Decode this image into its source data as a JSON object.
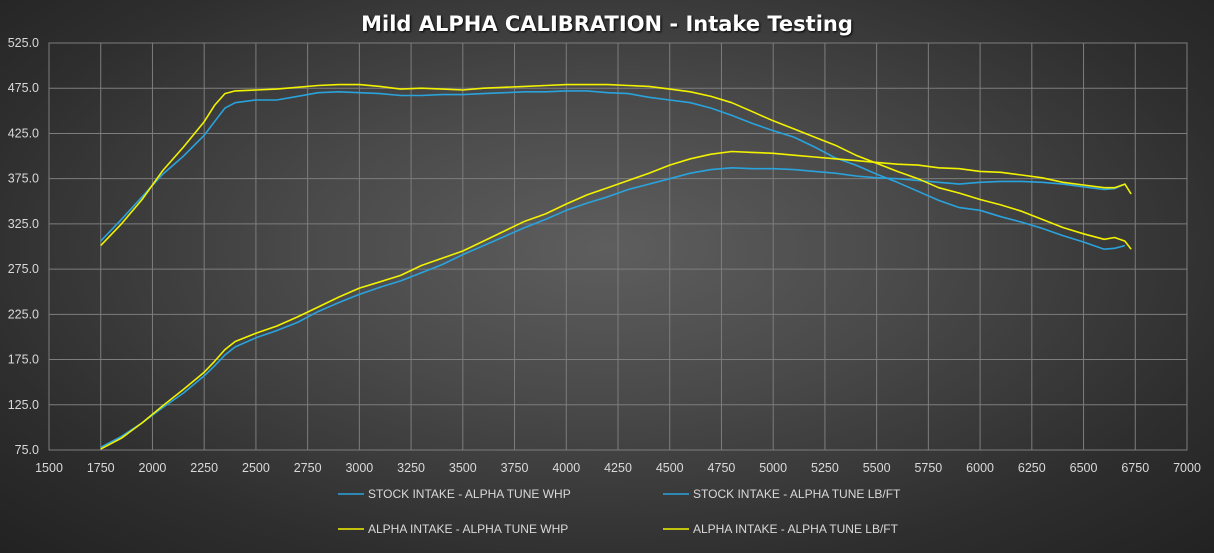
{
  "chart_data": {
    "type": "line",
    "title": "Mild ALPHA CALIBRATION - Intake Testing",
    "xlabel": "",
    "ylabel": "",
    "xlim": [
      1500,
      7000
    ],
    "ylim": [
      75.0,
      525.0
    ],
    "x_ticks": [
      1500,
      1750,
      2000,
      2250,
      2500,
      2750,
      3000,
      3250,
      3500,
      3750,
      4000,
      4250,
      4500,
      4750,
      5000,
      5250,
      5500,
      5750,
      6000,
      6250,
      6500,
      6750,
      7000
    ],
    "y_ticks": [
      "75.0",
      "125.0",
      "175.0",
      "225.0",
      "275.0",
      "325.0",
      "375.0",
      "425.0",
      "475.0",
      "525.0"
    ],
    "grid": true,
    "legend_position": "bottom",
    "series": [
      {
        "name": "STOCK INTAKE - ALPHA TUNE WHP",
        "color": "#2aa3dc",
        "points": [
          [
            1750,
            78
          ],
          [
            1850,
            90
          ],
          [
            1950,
            105
          ],
          [
            2050,
            122
          ],
          [
            2150,
            138
          ],
          [
            2250,
            157
          ],
          [
            2300,
            168
          ],
          [
            2350,
            180
          ],
          [
            2400,
            189
          ],
          [
            2500,
            199
          ],
          [
            2600,
            207
          ],
          [
            2700,
            216
          ],
          [
            2800,
            228
          ],
          [
            2900,
            238
          ],
          [
            3000,
            247
          ],
          [
            3100,
            255
          ],
          [
            3200,
            262
          ],
          [
            3300,
            271
          ],
          [
            3400,
            280
          ],
          [
            3500,
            291
          ],
          [
            3600,
            301
          ],
          [
            3700,
            311
          ],
          [
            3800,
            321
          ],
          [
            3900,
            330
          ],
          [
            4000,
            340
          ],
          [
            4100,
            348
          ],
          [
            4200,
            355
          ],
          [
            4300,
            363
          ],
          [
            4400,
            369
          ],
          [
            4500,
            375
          ],
          [
            4600,
            381
          ],
          [
            4700,
            385
          ],
          [
            4800,
            387
          ],
          [
            4900,
            386
          ],
          [
            5000,
            386
          ],
          [
            5100,
            385
          ],
          [
            5200,
            383
          ],
          [
            5300,
            381
          ],
          [
            5400,
            378
          ],
          [
            5500,
            376
          ],
          [
            5600,
            375
          ],
          [
            5700,
            373
          ],
          [
            5800,
            371
          ],
          [
            5900,
            369
          ],
          [
            6000,
            371
          ],
          [
            6100,
            372
          ],
          [
            6200,
            372
          ],
          [
            6300,
            371
          ],
          [
            6400,
            369
          ],
          [
            6500,
            366
          ],
          [
            6600,
            363
          ],
          [
            6650,
            364
          ],
          [
            6700,
            369
          ]
        ]
      },
      {
        "name": "STOCK INTAKE - ALPHA TUNE LB/FT",
        "color": "#2aa3dc",
        "points": [
          [
            1750,
            306
          ],
          [
            1850,
            330
          ],
          [
            1950,
            355
          ],
          [
            2050,
            380
          ],
          [
            2150,
            400
          ],
          [
            2250,
            423
          ],
          [
            2300,
            438
          ],
          [
            2350,
            453
          ],
          [
            2400,
            459
          ],
          [
            2500,
            462
          ],
          [
            2600,
            462
          ],
          [
            2700,
            466
          ],
          [
            2800,
            470
          ],
          [
            2900,
            471
          ],
          [
            3000,
            470
          ],
          [
            3100,
            469
          ],
          [
            3200,
            467
          ],
          [
            3300,
            467
          ],
          [
            3400,
            468
          ],
          [
            3500,
            468
          ],
          [
            3600,
            469
          ],
          [
            3700,
            470
          ],
          [
            3800,
            471
          ],
          [
            3900,
            471
          ],
          [
            4000,
            472
          ],
          [
            4100,
            472
          ],
          [
            4200,
            470
          ],
          [
            4300,
            469
          ],
          [
            4400,
            465
          ],
          [
            4500,
            462
          ],
          [
            4600,
            459
          ],
          [
            4700,
            453
          ],
          [
            4800,
            445
          ],
          [
            4900,
            436
          ],
          [
            5000,
            428
          ],
          [
            5100,
            421
          ],
          [
            5200,
            410
          ],
          [
            5300,
            398
          ],
          [
            5400,
            390
          ],
          [
            5500,
            380
          ],
          [
            5600,
            371
          ],
          [
            5700,
            361
          ],
          [
            5800,
            351
          ],
          [
            5900,
            343
          ],
          [
            6000,
            340
          ],
          [
            6100,
            333
          ],
          [
            6200,
            327
          ],
          [
            6300,
            320
          ],
          [
            6400,
            312
          ],
          [
            6500,
            305
          ],
          [
            6600,
            297
          ],
          [
            6650,
            298
          ],
          [
            6700,
            301
          ]
        ]
      },
      {
        "name": "ALPHA INTAKE - ALPHA TUNE WHP",
        "color": "#f2f200",
        "points": [
          [
            1750,
            76
          ],
          [
            1850,
            88
          ],
          [
            1950,
            105
          ],
          [
            2050,
            124
          ],
          [
            2150,
            142
          ],
          [
            2250,
            161
          ],
          [
            2300,
            173
          ],
          [
            2350,
            186
          ],
          [
            2400,
            195
          ],
          [
            2500,
            204
          ],
          [
            2600,
            212
          ],
          [
            2700,
            222
          ],
          [
            2800,
            233
          ],
          [
            2900,
            244
          ],
          [
            3000,
            254
          ],
          [
            3100,
            261
          ],
          [
            3200,
            268
          ],
          [
            3300,
            279
          ],
          [
            3400,
            287
          ],
          [
            3500,
            295
          ],
          [
            3600,
            306
          ],
          [
            3700,
            317
          ],
          [
            3800,
            328
          ],
          [
            3900,
            336
          ],
          [
            4000,
            347
          ],
          [
            4100,
            357
          ],
          [
            4200,
            365
          ],
          [
            4300,
            373
          ],
          [
            4400,
            381
          ],
          [
            4500,
            390
          ],
          [
            4600,
            397
          ],
          [
            4700,
            402
          ],
          [
            4800,
            405
          ],
          [
            4900,
            404
          ],
          [
            5000,
            403
          ],
          [
            5100,
            401
          ],
          [
            5200,
            399
          ],
          [
            5300,
            397
          ],
          [
            5400,
            395
          ],
          [
            5500,
            393
          ],
          [
            5600,
            391
          ],
          [
            5700,
            390
          ],
          [
            5800,
            387
          ],
          [
            5900,
            386
          ],
          [
            6000,
            383
          ],
          [
            6100,
            382
          ],
          [
            6200,
            379
          ],
          [
            6300,
            376
          ],
          [
            6400,
            371
          ],
          [
            6500,
            368
          ],
          [
            6600,
            365
          ],
          [
            6650,
            365
          ],
          [
            6700,
            369
          ],
          [
            6730,
            358
          ]
        ]
      },
      {
        "name": "ALPHA INTAKE - ALPHA TUNE LB/FT",
        "color": "#f2f200",
        "points": [
          [
            1750,
            301
          ],
          [
            1850,
            325
          ],
          [
            1950,
            352
          ],
          [
            2050,
            384
          ],
          [
            2150,
            410
          ],
          [
            2250,
            438
          ],
          [
            2300,
            456
          ],
          [
            2350,
            469
          ],
          [
            2400,
            472
          ],
          [
            2500,
            473
          ],
          [
            2600,
            474
          ],
          [
            2700,
            476
          ],
          [
            2800,
            478
          ],
          [
            2900,
            479
          ],
          [
            3000,
            479
          ],
          [
            3100,
            477
          ],
          [
            3200,
            474
          ],
          [
            3300,
            475
          ],
          [
            3400,
            474
          ],
          [
            3500,
            473
          ],
          [
            3600,
            475
          ],
          [
            3700,
            476
          ],
          [
            3800,
            477
          ],
          [
            3900,
            478
          ],
          [
            4000,
            479
          ],
          [
            4100,
            479
          ],
          [
            4200,
            479
          ],
          [
            4300,
            478
          ],
          [
            4400,
            477
          ],
          [
            4500,
            474
          ],
          [
            4600,
            471
          ],
          [
            4700,
            466
          ],
          [
            4800,
            459
          ],
          [
            4900,
            449
          ],
          [
            5000,
            439
          ],
          [
            5100,
            430
          ],
          [
            5200,
            421
          ],
          [
            5300,
            412
          ],
          [
            5400,
            401
          ],
          [
            5500,
            392
          ],
          [
            5600,
            383
          ],
          [
            5700,
            375
          ],
          [
            5800,
            365
          ],
          [
            5900,
            359
          ],
          [
            6000,
            352
          ],
          [
            6100,
            346
          ],
          [
            6200,
            339
          ],
          [
            6300,
            330
          ],
          [
            6400,
            321
          ],
          [
            6500,
            314
          ],
          [
            6600,
            308
          ],
          [
            6650,
            310
          ],
          [
            6700,
            306
          ],
          [
            6730,
            297
          ]
        ]
      }
    ]
  }
}
